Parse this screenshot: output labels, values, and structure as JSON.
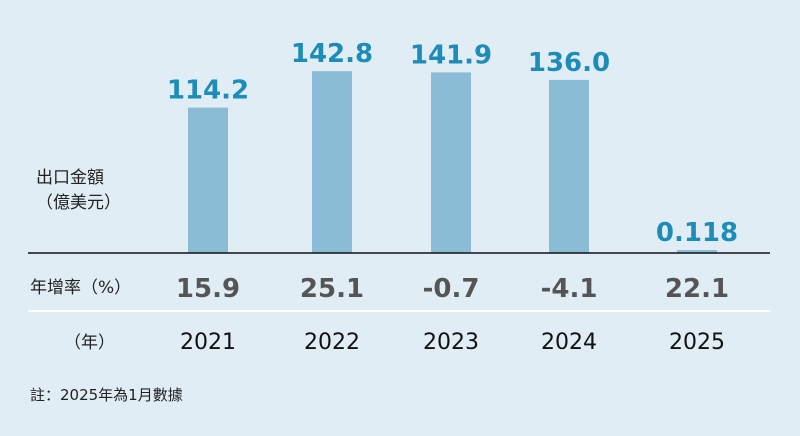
{
  "chart_data": {
    "type": "bar",
    "categories": [
      "2021",
      "2022",
      "2023",
      "2024",
      "2025"
    ],
    "values": [
      114.2,
      142.8,
      141.9,
      136.0,
      0.118
    ],
    "value_labels": [
      "114.2",
      "142.8",
      "141.9",
      "136.0",
      "0.118"
    ],
    "growth_rates": [
      "15.9",
      "25.1",
      "-0.7",
      "-4.1",
      "22.1"
    ],
    "ylabel_lines": [
      "出口金額",
      "（億美元）"
    ],
    "growth_label": "年增率（%）",
    "year_label": "（年）",
    "ylim": [
      0,
      160
    ],
    "grid": false
  },
  "note": "註：2025年為1月數據",
  "colors": {
    "background": "#e1edf5",
    "bar": "#8bbcd6",
    "value_label": "#1d8cb8",
    "growth_text": "#555555",
    "axis_line": "#111111",
    "divider": "#ffffff"
  }
}
